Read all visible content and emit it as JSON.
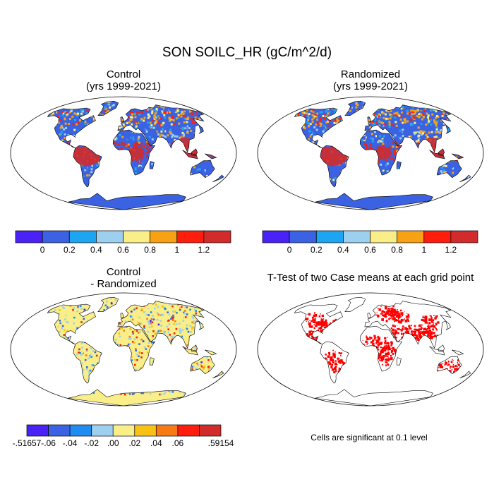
{
  "figure": {
    "title": "SON SOILC_HR (gC/m^2/d)"
  },
  "chart_data": [
    {
      "type": "heatmap",
      "title": "Control",
      "subtitle": "(yrs 1999-2021)",
      "colorbar": {
        "ticks": [
          "0",
          "0.2",
          "0.4",
          "0.6",
          "0.8",
          "1",
          "1.2"
        ],
        "colors": [
          "#4b22f5",
          "#3a62e2",
          "#1ea5f2",
          "#9dd0ee",
          "#f9ee87",
          "#f7a214",
          "#ff1e0e",
          "#d12b2b"
        ]
      }
    },
    {
      "type": "heatmap",
      "title": "Randomized",
      "subtitle": "(yrs 1999-2021)",
      "colorbar": {
        "ticks": [
          "0",
          "0.2",
          "0.4",
          "0.6",
          "0.8",
          "1",
          "1.2"
        ],
        "colors": [
          "#4b22f5",
          "#3a62e2",
          "#1ea5f2",
          "#9dd0ee",
          "#f9ee87",
          "#f7a214",
          "#ff1e0e",
          "#d12b2b"
        ]
      }
    },
    {
      "type": "heatmap",
      "title": "Control",
      "subtitle": "- Randomized",
      "colorbar": {
        "ticks": [
          "-.51657",
          "-.06",
          "-.04",
          "-.02",
          ".00",
          ".02",
          ".04",
          ".06",
          ".59154"
        ],
        "colors": [
          "#4b22f5",
          "#3a62e2",
          "#1e8cf0",
          "#9dd0ee",
          "#f9ee87",
          "#f7c214",
          "#f77a14",
          "#ff1e0e",
          "#d12b2b"
        ]
      }
    },
    {
      "type": "heatmap",
      "title": "T-Test of two Case means at each grid point",
      "note": "Cells are significant at 0.1 level",
      "significance_color": "#ff0000"
    }
  ]
}
